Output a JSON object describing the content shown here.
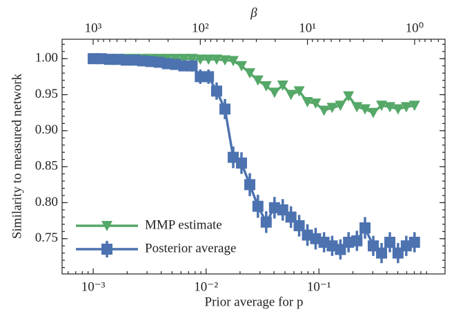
{
  "chart_data": {
    "type": "line",
    "xlabel": "Prior average for p",
    "ylabel": "Similarity to measured network",
    "x2label": "β",
    "xscale": "log",
    "x2scale": "log",
    "x": [
      0.001,
      0.00118,
      0.0014,
      0.00166,
      0.00196,
      0.00232,
      0.00274,
      0.00324,
      0.00384,
      0.00454,
      0.00537,
      0.00635,
      0.00752,
      0.00889,
      0.0105,
      0.0124,
      0.0147,
      0.0174,
      0.0206,
      0.0244,
      0.0288,
      0.0341,
      0.0404,
      0.0478,
      0.0565,
      0.0668,
      0.0791,
      0.0935,
      0.111,
      0.131,
      0.155,
      0.183,
      0.217,
      0.256,
      0.303,
      0.359,
      0.425,
      0.502,
      0.594,
      0.703
    ],
    "series": [
      {
        "name": "MMP estimate",
        "color": "#55a868",
        "marker": "triangle-down",
        "values": [
          1.0,
          1.0,
          1.0,
          1.0,
          1.0,
          1.0,
          1.0,
          1.0,
          1.0,
          1.0,
          1.0,
          1.0,
          1.0,
          0.999,
          0.999,
          0.999,
          0.998,
          0.997,
          0.99,
          0.98,
          0.97,
          0.962,
          0.953,
          0.963,
          0.95,
          0.955,
          0.94,
          0.938,
          0.928,
          0.932,
          0.935,
          0.948,
          0.933,
          0.93,
          0.925,
          0.935,
          0.933,
          0.93,
          0.933,
          0.935
        ]
      },
      {
        "name": "Posterior average",
        "color": "#4c72b0",
        "marker": "square",
        "values": [
          1.0,
          1.0,
          0.999,
          0.999,
          0.998,
          0.998,
          0.997,
          0.996,
          0.995,
          0.993,
          0.992,
          0.99,
          0.99,
          0.975,
          0.975,
          0.955,
          0.93,
          0.863,
          0.855,
          0.825,
          0.795,
          0.773,
          0.793,
          0.79,
          0.78,
          0.768,
          0.755,
          0.75,
          0.745,
          0.74,
          0.735,
          0.745,
          0.747,
          0.765,
          0.74,
          0.73,
          0.745,
          0.73,
          0.74,
          0.745
        ],
        "errors": [
          0.004,
          0.004,
          0.004,
          0.004,
          0.004,
          0.004,
          0.005,
          0.005,
          0.005,
          0.006,
          0.006,
          0.007,
          0.008,
          0.01,
          0.01,
          0.012,
          0.014,
          0.015,
          0.015,
          0.016,
          0.016,
          0.015,
          0.015,
          0.015,
          0.015,
          0.015,
          0.015,
          0.015,
          0.014,
          0.014,
          0.014,
          0.014,
          0.014,
          0.015,
          0.014,
          0.014,
          0.014,
          0.014,
          0.014,
          0.014
        ]
      }
    ],
    "xlim": [
      0.00053,
      1.31
    ],
    "x2lim": [
      1950,
      0.52
    ],
    "ylim": [
      0.701,
      1.027
    ],
    "xticks": [
      {
        "value": 0.001,
        "label": "10⁻³"
      },
      {
        "value": 0.01,
        "label": "10⁻²"
      },
      {
        "value": 0.1,
        "label": "10⁻¹"
      }
    ],
    "x2ticks": [
      {
        "value": 1000,
        "label": "10³"
      },
      {
        "value": 100,
        "label": "10²"
      },
      {
        "value": 10,
        "label": "10¹"
      },
      {
        "value": 1,
        "label": "10⁰"
      }
    ],
    "yticks": [
      0.75,
      {
        "value": 0.8,
        "label": "0.80"
      },
      0.85,
      {
        "value": 0.9,
        "label": "0.90"
      },
      0.95,
      {
        "value": 1.0,
        "label": "1.00"
      }
    ],
    "legend": "lower left",
    "grid": false
  }
}
